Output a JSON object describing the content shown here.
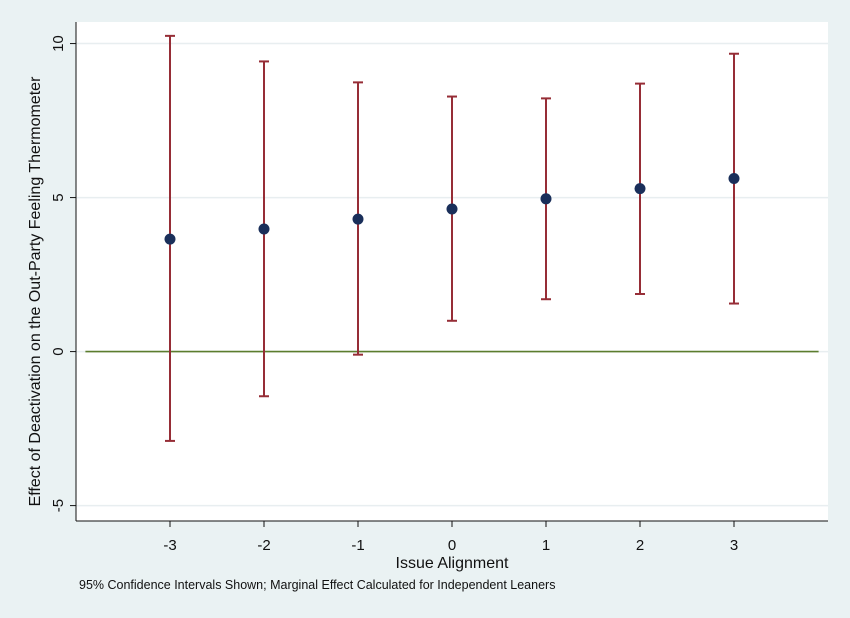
{
  "chart_data": {
    "type": "scatter",
    "title": "",
    "xlabel": "Issue Alignment",
    "ylabel": "Effect of Deactivation on the Out-Party Feeling Thermometer",
    "xlim": [
      -4,
      4
    ],
    "ylim": [
      -5.5,
      10.7
    ],
    "x_ticks": [
      -3,
      -2,
      -1,
      0,
      1,
      2,
      3
    ],
    "y_ticks": [
      -5,
      0,
      5,
      10
    ],
    "grid": "horizontal",
    "reference_line": 0,
    "points": [
      {
        "x": -3,
        "y": 3.65,
        "ci_low": -2.9,
        "ci_high": 10.25
      },
      {
        "x": -2,
        "y": 3.98,
        "ci_low": -1.45,
        "ci_high": 9.42
      },
      {
        "x": -1,
        "y": 4.3,
        "ci_low": -0.1,
        "ci_high": 8.74
      },
      {
        "x": 0,
        "y": 4.63,
        "ci_low": 1.0,
        "ci_high": 8.28
      },
      {
        "x": 1,
        "y": 4.96,
        "ci_low": 1.7,
        "ci_high": 8.22
      },
      {
        "x": 2,
        "y": 5.29,
        "ci_low": 1.87,
        "ci_high": 8.7
      },
      {
        "x": 3,
        "y": 5.62,
        "ci_low": 1.56,
        "ci_high": 9.67
      }
    ],
    "colors": {
      "marker": "#1a2f5a",
      "ci": "#962d36",
      "reference_line": "#5b7d2e",
      "grid": "#e8eef0",
      "plot_bg": "#ffffff",
      "outer_bg": "#eaf2f3"
    }
  },
  "note": "95% Confidence Intervals Shown; Marginal Effect Calculated for Independent Leaners"
}
